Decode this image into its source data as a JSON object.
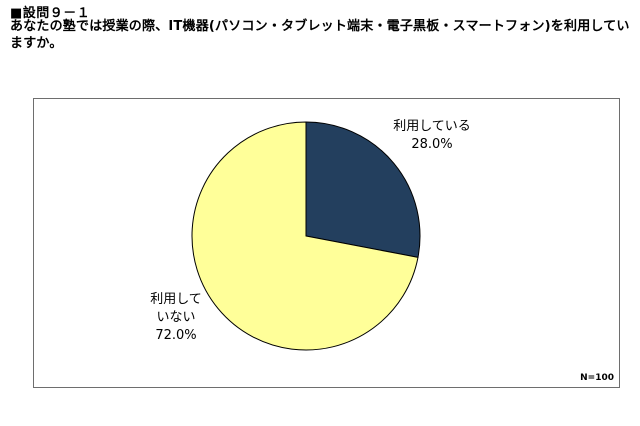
{
  "header": {
    "question_number": "■設問９－１",
    "question_text": "あなたの塾では授業の際、IT機器(パソコン・タブレット端末・電子黒板・スマートフォン)を利用していますか。"
  },
  "chart_data": {
    "type": "pie",
    "categories": [
      "利用している",
      "利用していない"
    ],
    "values": [
      28.0,
      72.0
    ],
    "value_labels": [
      "28.0%",
      "72.0%"
    ],
    "label_lines": [
      [
        "利用している",
        "28.0%"
      ],
      [
        "利用して",
        "いない",
        "72.0%"
      ]
    ],
    "colors": [
      "#233f5e",
      "#ffff99"
    ],
    "start_angle_deg": 0,
    "direction": "clockwise",
    "legend": "none",
    "note": "N=100"
  }
}
